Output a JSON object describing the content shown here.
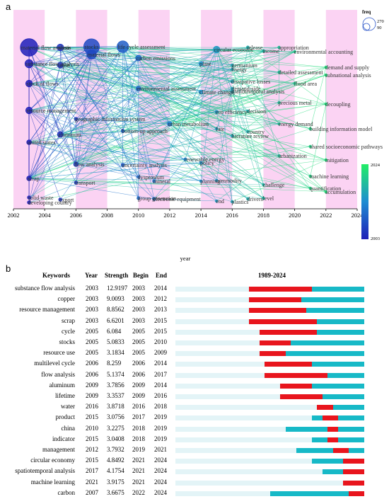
{
  "panel_a_label": "a",
  "panel_b_label": "b",
  "chart_data": [
    {
      "type": "scatter",
      "subtype": "timezone-keyword-network",
      "xlabel": "year",
      "x_ticks": [
        "2002",
        "2004",
        "2006",
        "2008",
        "2010",
        "2012",
        "2014",
        "2016",
        "2018",
        "2020",
        "2022",
        "2024"
      ],
      "xlim": [
        2002,
        2024
      ],
      "legend_freq_title": "freq",
      "legend_freq_values": [
        "270",
        "90"
      ],
      "colorbar_min": "2003",
      "colorbar_max": "2024",
      "colors": {
        "band": "#fbd3f3",
        "old": "#1f1fb8",
        "new": "#22ee66"
      },
      "nodes": [
        {
          "label": "material flow analysis",
          "year": 2003,
          "freq": 270
        },
        {
          "label": "substance flow analysis",
          "year": 2003,
          "freq": 60
        },
        {
          "label": "stock of flows",
          "year": 2003,
          "freq": 40
        },
        {
          "label": "resource management",
          "year": 2003,
          "freq": 40
        },
        {
          "label": "united states",
          "year": 2003,
          "freq": 20
        },
        {
          "label": "scrap",
          "year": 2003,
          "freq": 20
        },
        {
          "label": "solid waste",
          "year": 2003,
          "freq": 10
        },
        {
          "label": "developing country",
          "year": 2003,
          "freq": 10
        },
        {
          "label": "waste",
          "year": 2005,
          "freq": 40
        },
        {
          "label": "input",
          "year": 2005,
          "freq": 30
        },
        {
          "label": "aluminum",
          "year": 2005,
          "freq": 30
        },
        {
          "label": "flow analysis",
          "year": 2006,
          "freq": 20
        },
        {
          "label": "transport",
          "year": 2006,
          "freq": 10
        },
        {
          "label": "export",
          "year": 2005,
          "freq": 10
        },
        {
          "label": "stocks",
          "year": 2007,
          "freq": 220
        },
        {
          "label": "material flows",
          "year": 2007,
          "freq": 80
        },
        {
          "label": "life cycle assessment",
          "year": 2009,
          "freq": 120
        },
        {
          "label": "carbon emissions",
          "year": 2010,
          "freq": 30
        },
        {
          "label": "environmental assessment",
          "year": 2010,
          "freq": 20
        },
        {
          "label": "urban metabolism",
          "year": 2012,
          "freq": 20
        },
        {
          "label": "circular economy",
          "year": 2015,
          "freq": 40
        },
        {
          "label": "plant",
          "year": 2014,
          "freq": 15
        },
        {
          "label": "climate change",
          "year": 2014,
          "freq": 15
        },
        {
          "label": "eco efficiency",
          "year": 2015,
          "freq": 10
        },
        {
          "label": "dissipative losses",
          "year": 2016,
          "freq": 10
        },
        {
          "label": "spatiotemporal analysis",
          "year": 2016,
          "freq": 10
        },
        {
          "label": "release",
          "year": 2017,
          "freq": 8
        },
        {
          "label": "income",
          "year": 2018,
          "freq": 8
        },
        {
          "label": "appropriation",
          "year": 2019,
          "freq": 6
        },
        {
          "label": "environmental accounting",
          "year": 2020,
          "freq": 6
        },
        {
          "label": "demand and supply",
          "year": 2022,
          "freq": 6
        },
        {
          "label": "subnational analysis",
          "year": 2022,
          "freq": 6
        },
        {
          "label": "detailed assessment",
          "year": 2019,
          "freq": 6
        },
        {
          "label": "flood area",
          "year": 2020,
          "freq": 6
        },
        {
          "label": "precious metal",
          "year": 2019,
          "freq": 6
        },
        {
          "label": "decoupling",
          "year": 2022,
          "freq": 6
        },
        {
          "label": "energy demand",
          "year": 2019,
          "freq": 6
        },
        {
          "label": "building information model",
          "year": 2021,
          "freq": 6
        },
        {
          "label": "shared socioeconomic pathways",
          "year": 2021,
          "freq": 6
        },
        {
          "label": "urbanization",
          "year": 2019,
          "freq": 6
        },
        {
          "label": "mitigation",
          "year": 2022,
          "freq": 6
        },
        {
          "label": "machine learning",
          "year": 2021,
          "freq": 6
        },
        {
          "label": "quantification",
          "year": 2021,
          "freq": 6
        },
        {
          "label": "accumulation",
          "year": 2022,
          "freq": 6
        },
        {
          "label": "challenge",
          "year": 2018,
          "freq": 6
        },
        {
          "label": "level",
          "year": 2018,
          "freq": 6
        },
        {
          "label": "drivers",
          "year": 2017,
          "freq": 6
        },
        {
          "label": "end",
          "year": 2015,
          "freq": 6
        },
        {
          "label": "plastics",
          "year": 2016,
          "freq": 6
        },
        {
          "label": "electronic equipment",
          "year": 2011,
          "freq": 10
        },
        {
          "label": "group generation",
          "year": 2010,
          "freq": 8
        },
        {
          "label": "dysprosium",
          "year": 2010,
          "freq": 8
        },
        {
          "label": "mineral",
          "year": 2011,
          "freq": 8
        },
        {
          "label": "policy",
          "year": 2014,
          "freq": 8
        },
        {
          "label": "literature review",
          "year": 2016,
          "freq": 6
        },
        {
          "label": "country",
          "year": 2017,
          "freq": 6
        },
        {
          "label": "fate",
          "year": 2015,
          "freq": 6
        },
        {
          "label": "decision",
          "year": 2017,
          "freq": 6
        },
        {
          "label": "uncertainty analysis",
          "year": 2009,
          "freq": 10
        },
        {
          "label": "bottom-up approach",
          "year": 2009,
          "freq": 10
        },
        {
          "label": "geographic information system",
          "year": 2006,
          "freq": 10
        },
        {
          "label": "renewable energy",
          "year": 2013,
          "freq": 8
        },
        {
          "label": "demand-side",
          "year": 2016,
          "freq": 6
        },
        {
          "label": "germanium",
          "year": 2016,
          "freq": 6
        },
        {
          "label": "energy",
          "year": 2016,
          "freq": 6
        },
        {
          "label": "commodity",
          "year": 2015,
          "freq": 6
        },
        {
          "label": "planning",
          "year": 2014,
          "freq": 6
        }
      ]
    },
    {
      "type": "table",
      "subtype": "citation-burst",
      "columns": [
        "Keywords",
        "Year",
        "Strength",
        "Begin",
        "End",
        "1989-2024"
      ],
      "range": [
        1989,
        2024
      ],
      "colors": {
        "base": "#e3f4f7",
        "active": "#17b9c7",
        "burst": "#e8151d"
      },
      "rows": [
        {
          "keyword": "substance flow analysis",
          "year": "2003",
          "strength": "12.9197",
          "begin": "2003",
          "end": "2014"
        },
        {
          "keyword": "copper",
          "year": "2003",
          "strength": "9.0093",
          "begin": "2003",
          "end": "2012"
        },
        {
          "keyword": "resource management",
          "year": "2003",
          "strength": "8.8562",
          "begin": "2003",
          "end": "2013"
        },
        {
          "keyword": "scrap",
          "year": "2003",
          "strength": "6.6201",
          "begin": "2003",
          "end": "2015"
        },
        {
          "keyword": "cycle",
          "year": "2005",
          "strength": "6.084",
          "begin": "2005",
          "end": "2015"
        },
        {
          "keyword": "stocks",
          "year": "2005",
          "strength": "5.0833",
          "begin": "2005",
          "end": "2010"
        },
        {
          "keyword": "resource use",
          "year": "2005",
          "strength": "3.1834",
          "begin": "2005",
          "end": "2009"
        },
        {
          "keyword": "multilevel cycle",
          "year": "2006",
          "strength": "8.259",
          "begin": "2006",
          "end": "2014"
        },
        {
          "keyword": "flow analysis",
          "year": "2006",
          "strength": "5.1374",
          "begin": "2006",
          "end": "2017"
        },
        {
          "keyword": "aluminum",
          "year": "2009",
          "strength": "3.7856",
          "begin": "2009",
          "end": "2014"
        },
        {
          "keyword": "lifetime",
          "year": "2009",
          "strength": "3.3537",
          "begin": "2009",
          "end": "2016"
        },
        {
          "keyword": "water",
          "year": "2016",
          "strength": "3.8718",
          "begin": "2016",
          "end": "2018"
        },
        {
          "keyword": "product",
          "year": "2015",
          "strength": "3.0756",
          "begin": "2017",
          "end": "2019"
        },
        {
          "keyword": "china",
          "year": "2010",
          "strength": "3.2275",
          "begin": "2018",
          "end": "2019"
        },
        {
          "keyword": "indicator",
          "year": "2015",
          "strength": "3.0408",
          "begin": "2018",
          "end": "2019"
        },
        {
          "keyword": "management",
          "year": "2012",
          "strength": "3.7932",
          "begin": "2019",
          "end": "2021"
        },
        {
          "keyword": "circular economy",
          "year": "2015",
          "strength": "4.8492",
          "begin": "2021",
          "end": "2024"
        },
        {
          "keyword": "spatiotemporal analysis",
          "year": "2017",
          "strength": "4.1754",
          "begin": "2021",
          "end": "2024"
        },
        {
          "keyword": "machine learning",
          "year": "2021",
          "strength": "3.9175",
          "begin": "2021",
          "end": "2024"
        },
        {
          "keyword": "carbon",
          "year": "2007",
          "strength": "3.6675",
          "begin": "2022",
          "end": "2024"
        }
      ]
    }
  ]
}
